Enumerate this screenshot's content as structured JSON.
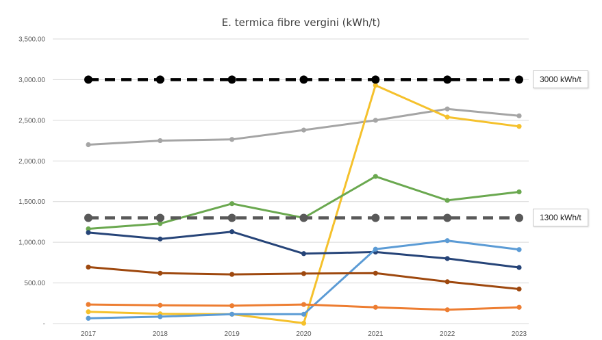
{
  "chart_data": {
    "type": "line",
    "title": "E. termica fibre vergini (kWh/t)",
    "xlabel": "",
    "ylabel": "",
    "categories": [
      "2017",
      "2018",
      "2019",
      "2020",
      "2021",
      "2022",
      "2023"
    ],
    "ylim": [
      0,
      3500
    ],
    "y_ticks": [
      0,
      500,
      1000,
      1500,
      2000,
      2500,
      3000,
      3500
    ],
    "y_tick_labels": [
      "-",
      "500.00",
      "1,000.00",
      "1,500.00",
      "2,000.00",
      "2,500.00",
      "3,000.00",
      "3,500.00"
    ],
    "grid": true,
    "legend": "none",
    "series": [
      {
        "color": "#a5a5a5",
        "values": [
          2200,
          2250,
          2265,
          2380,
          2500,
          2640,
          2555
        ]
      },
      {
        "color": "#f5c12c",
        "values": [
          145,
          120,
          115,
          5,
          2930,
          2540,
          2425
        ]
      },
      {
        "color": "#6aa84f",
        "values": [
          1165,
          1230,
          1475,
          1300,
          1810,
          1515,
          1620
        ]
      },
      {
        "color": "#264478",
        "values": [
          1120,
          1040,
          1130,
          860,
          880,
          800,
          690
        ]
      },
      {
        "color": "#5b9bd5",
        "values": [
          65,
          85,
          115,
          115,
          915,
          1020,
          910
        ]
      },
      {
        "color": "#9e480e",
        "values": [
          695,
          620,
          605,
          615,
          620,
          515,
          425
        ]
      },
      {
        "color": "#ed7d31",
        "values": [
          235,
          225,
          220,
          235,
          200,
          170,
          200
        ]
      }
    ],
    "reference_lines": [
      {
        "value": 3000,
        "label": "3000 kWh/t",
        "color": "#000000"
      },
      {
        "value": 1300,
        "label": "1300 kWh/t",
        "color": "#595959"
      }
    ]
  }
}
